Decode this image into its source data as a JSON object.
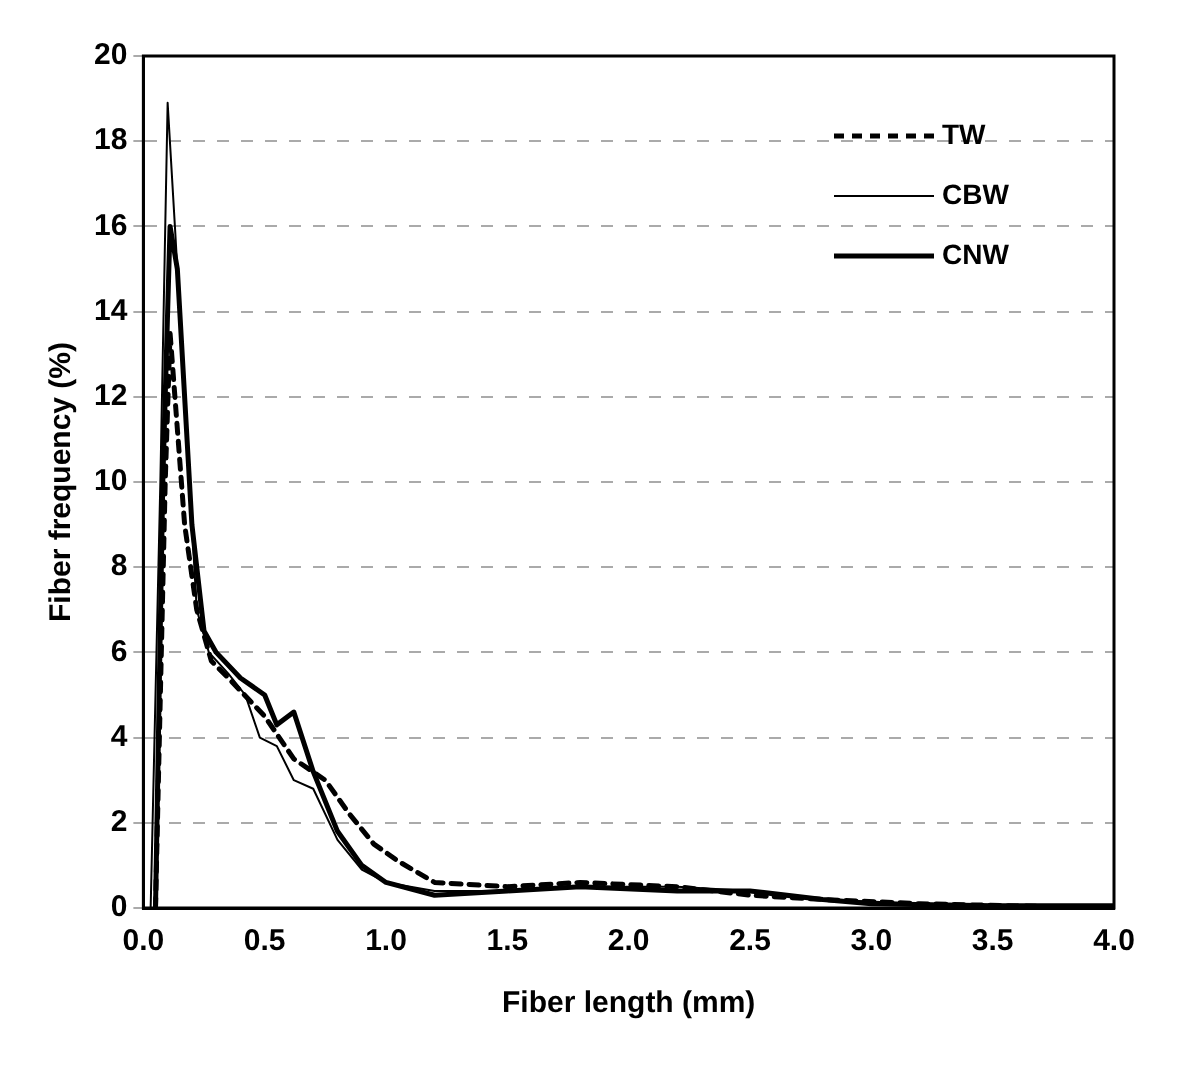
{
  "chart_data": {
    "type": "line",
    "xlabel": "Fiber length (mm)",
    "ylabel": "Fiber frequency (%)",
    "xlim": [
      0,
      4
    ],
    "xticks": [
      {
        "value": 0,
        "label": "0.0"
      },
      {
        "value": 0.5,
        "label": "0.5"
      },
      {
        "value": 1,
        "label": "1.0"
      },
      {
        "value": 1.5,
        "label": "1.5"
      },
      {
        "value": 2,
        "label": "2.0"
      },
      {
        "value": 2.5,
        "label": "2.5"
      },
      {
        "value": 3,
        "label": "3.0"
      },
      {
        "value": 3.5,
        "label": "3.5"
      },
      {
        "value": 4,
        "label": "4.0"
      }
    ],
    "ylim": [
      0,
      20
    ],
    "yticks": [
      0,
      2,
      4,
      6,
      8,
      10,
      12,
      14,
      16,
      18,
      20
    ],
    "grid": "y",
    "legend": "top right",
    "marker": "none",
    "series": [
      {
        "name": "TW",
        "color": "#000000",
        "line_style": "dashed",
        "x": [
          0.05,
          0.09,
          0.11,
          0.13,
          0.17,
          0.22,
          0.28,
          0.35,
          0.5,
          0.62,
          0.75,
          0.85,
          0.95,
          1.05,
          1.2,
          1.5,
          1.8,
          2.2,
          2.5,
          2.8,
          3.2,
          4.0
        ],
        "values": [
          0,
          10,
          13.5,
          12,
          9,
          7,
          5.8,
          5.4,
          4.5,
          3.5,
          3.0,
          2.2,
          1.5,
          1.1,
          0.6,
          0.5,
          0.6,
          0.5,
          0.3,
          0.2,
          0.1,
          0
        ]
      },
      {
        "name": "CBW",
        "color": "#000000",
        "line_style": "solid",
        "x": [
          0.03,
          0.07,
          0.1,
          0.13,
          0.17,
          0.22,
          0.27,
          0.35,
          0.42,
          0.48,
          0.55,
          0.62,
          0.7,
          0.8,
          0.9,
          1.0,
          1.2,
          1.5,
          1.8,
          2.2,
          2.5,
          2.8,
          3.2,
          3.5,
          4.0
        ],
        "values": [
          0,
          10,
          18.9,
          16,
          12,
          7,
          6,
          5.5,
          5,
          4,
          3.8,
          3,
          2.8,
          1.6,
          0.9,
          0.6,
          0.4,
          0.4,
          0.5,
          0.5,
          0.4,
          0.2,
          0.1,
          0.05,
          0
        ]
      },
      {
        "name": "CNW",
        "color": "#000000",
        "line_style": "solid",
        "x": [
          0.05,
          0.08,
          0.11,
          0.14,
          0.2,
          0.25,
          0.3,
          0.4,
          0.5,
          0.55,
          0.62,
          0.7,
          0.8,
          0.9,
          1.0,
          1.2,
          1.5,
          1.8,
          2.2,
          2.5,
          2.8,
          3.0,
          3.5,
          4.0
        ],
        "values": [
          0,
          10,
          16,
          15,
          9,
          6.5,
          6,
          5.4,
          5.0,
          4.3,
          4.6,
          3.2,
          1.8,
          1.0,
          0.6,
          0.3,
          0.4,
          0.5,
          0.4,
          0.4,
          0.2,
          0.1,
          0.05,
          0.05
        ]
      }
    ]
  }
}
